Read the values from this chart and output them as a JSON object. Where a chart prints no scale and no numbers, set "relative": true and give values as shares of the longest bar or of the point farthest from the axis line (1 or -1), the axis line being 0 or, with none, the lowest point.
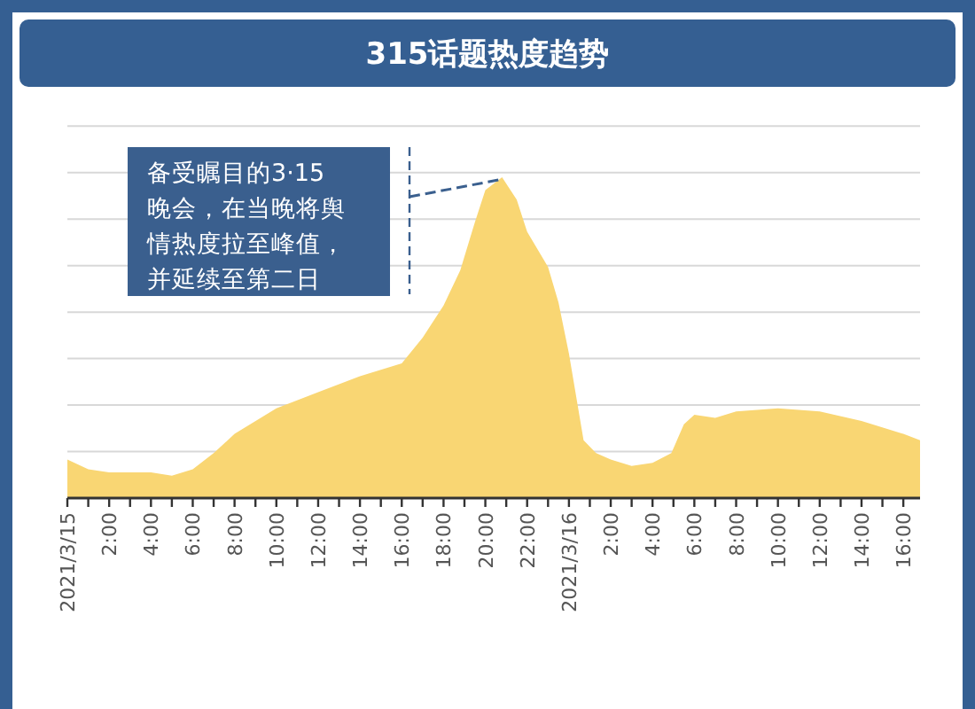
{
  "chart_data": {
    "type": "area",
    "title": "315话题热度趋势",
    "relative": true,
    "color": "#f9d673",
    "grid": "y",
    "x": [
      "2021-03-15T00:00",
      "2021-03-15T01:00",
      "2021-03-15T02:00",
      "2021-03-15T03:00",
      "2021-03-15T04:00",
      "2021-03-15T05:00",
      "2021-03-15T06:00",
      "2021-03-15T07:00",
      "2021-03-15T08:00",
      "2021-03-15T10:00",
      "2021-03-15T12:00",
      "2021-03-15T14:00",
      "2021-03-15T16:00",
      "2021-03-15T17:00",
      "2021-03-15T18:00",
      "2021-03-15T18:48",
      "2021-03-15T19:30",
      "2021-03-15T20:00",
      "2021-03-15T20:48",
      "2021-03-15T21:30",
      "2021-03-15T22:00",
      "2021-03-15T23:00",
      "2021-03-15T23:30",
      "2021-03-16T00:00",
      "2021-03-16T00:42",
      "2021-03-16T01:18",
      "2021-03-16T02:00",
      "2021-03-16T03:00",
      "2021-03-16T04:00",
      "2021-03-16T04:54",
      "2021-03-16T05:30",
      "2021-03-16T06:00",
      "2021-03-16T07:00",
      "2021-03-16T08:00",
      "2021-03-16T10:00",
      "2021-03-16T12:00",
      "2021-03-16T14:00",
      "2021-03-16T16:00",
      "2021-03-16T16:48"
    ],
    "values": [
      0.12,
      0.09,
      0.08,
      0.08,
      0.08,
      0.07,
      0.09,
      0.14,
      0.2,
      0.28,
      0.33,
      0.38,
      0.42,
      0.5,
      0.6,
      0.71,
      0.86,
      0.96,
      1,
      0.93,
      0.83,
      0.72,
      0.61,
      0.45,
      0.18,
      0.14,
      0.12,
      0.1,
      0.11,
      0.14,
      0.23,
      0.26,
      0.25,
      0.27,
      0.28,
      0.27,
      0.24,
      0.2,
      0.18
    ],
    "xlim": [
      "2021-03-15T00:00",
      "2021-03-16T16:48"
    ],
    "xticks": [
      {
        "value": "2021-03-15T00:00",
        "label": "2021/3/15"
      },
      {
        "value": "2021-03-15T01:00",
        "label": null
      },
      {
        "value": "2021-03-15T02:00",
        "label": "2:00"
      },
      {
        "value": "2021-03-15T03:00",
        "label": null
      },
      {
        "value": "2021-03-15T04:00",
        "label": "4:00"
      },
      {
        "value": "2021-03-15T05:00",
        "label": null
      },
      {
        "value": "2021-03-15T06:00",
        "label": "6:00"
      },
      {
        "value": "2021-03-15T07:00",
        "label": null
      },
      {
        "value": "2021-03-15T08:00",
        "label": "8:00"
      },
      {
        "value": "2021-03-15T09:00",
        "label": null
      },
      {
        "value": "2021-03-15T10:00",
        "label": "10:00"
      },
      {
        "value": "2021-03-15T11:00",
        "label": null
      },
      {
        "value": "2021-03-15T12:00",
        "label": "12:00"
      },
      {
        "value": "2021-03-15T13:00",
        "label": null
      },
      {
        "value": "2021-03-15T14:00",
        "label": "14:00"
      },
      {
        "value": "2021-03-15T15:00",
        "label": null
      },
      {
        "value": "2021-03-15T16:00",
        "label": "16:00"
      },
      {
        "value": "2021-03-15T17:00",
        "label": null
      },
      {
        "value": "2021-03-15T18:00",
        "label": "18:00"
      },
      {
        "value": "2021-03-15T19:00",
        "label": null
      },
      {
        "value": "2021-03-15T20:00",
        "label": "20:00"
      },
      {
        "value": "2021-03-15T21:00",
        "label": null
      },
      {
        "value": "2021-03-15T22:00",
        "label": "22:00"
      },
      {
        "value": "2021-03-15T23:00",
        "label": null
      },
      {
        "value": "2021-03-16T00:00",
        "label": "2021/3/16"
      },
      {
        "value": "2021-03-16T01:00",
        "label": null
      },
      {
        "value": "2021-03-16T02:00",
        "label": "2:00"
      },
      {
        "value": "2021-03-16T03:00",
        "label": null
      },
      {
        "value": "2021-03-16T04:00",
        "label": "4:00"
      },
      {
        "value": "2021-03-16T05:00",
        "label": null
      },
      {
        "value": "2021-03-16T06:00",
        "label": "6:00"
      },
      {
        "value": "2021-03-16T07:00",
        "label": null
      },
      {
        "value": "2021-03-16T08:00",
        "label": "8:00"
      },
      {
        "value": "2021-03-16T09:00",
        "label": null
      },
      {
        "value": "2021-03-16T10:00",
        "label": "10:00"
      },
      {
        "value": "2021-03-16T11:00",
        "label": null
      },
      {
        "value": "2021-03-16T12:00",
        "label": "12:00"
      },
      {
        "value": "2021-03-16T13:00",
        "label": null
      },
      {
        "value": "2021-03-16T14:00",
        "label": "14:00"
      },
      {
        "value": "2021-03-16T15:00",
        "label": null
      },
      {
        "value": "2021-03-16T16:00",
        "label": "16:00"
      }
    ],
    "annotations": [
      "备受瞩目的3·15晚会，在当晚将舆情热度拉至峰值，并延续至第二日"
    ]
  }
}
